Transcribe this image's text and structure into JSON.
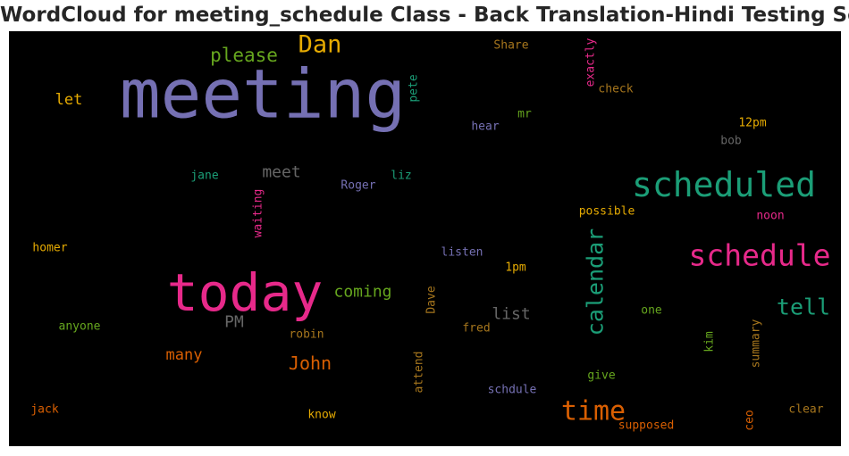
{
  "chart_data": {
    "type": "wordcloud",
    "title": "WordCloud for meeting_schedule Class - Back Translation-Hindi Testing Set",
    "background": "#000000",
    "words": [
      {
        "text": "meeting",
        "weight": 1.0,
        "color": "#7570b3",
        "rotated": false
      },
      {
        "text": "today",
        "weight": 0.78,
        "color": "#e7298a",
        "rotated": false
      },
      {
        "text": "scheduled",
        "weight": 0.5,
        "color": "#1b9e77",
        "rotated": false
      },
      {
        "text": "schedule",
        "weight": 0.46,
        "color": "#e7298a",
        "rotated": false
      },
      {
        "text": "calendar",
        "weight": 0.34,
        "color": "#1b9e77",
        "rotated": true
      },
      {
        "text": "time",
        "weight": 0.38,
        "color": "#d95f02",
        "rotated": false
      },
      {
        "text": "Dan",
        "weight": 0.36,
        "color": "#e6ab02",
        "rotated": false
      },
      {
        "text": "tell",
        "weight": 0.34,
        "color": "#1b9e77",
        "rotated": false
      },
      {
        "text": "please",
        "weight": 0.28,
        "color": "#66a61e",
        "rotated": false
      },
      {
        "text": "John",
        "weight": 0.27,
        "color": "#d95f02",
        "rotated": false
      },
      {
        "text": "coming",
        "weight": 0.24,
        "color": "#66a61e",
        "rotated": false
      },
      {
        "text": "list",
        "weight": 0.24,
        "color": "#666666",
        "rotated": false
      },
      {
        "text": "meet",
        "weight": 0.23,
        "color": "#666666",
        "rotated": false
      },
      {
        "text": "many",
        "weight": 0.22,
        "color": "#d95f02",
        "rotated": false
      },
      {
        "text": "PM",
        "weight": 0.22,
        "color": "#666666",
        "rotated": false
      },
      {
        "text": "let",
        "weight": 0.22,
        "color": "#e6ab02",
        "rotated": false
      },
      {
        "text": "Share",
        "weight": 0.17,
        "color": "#a6761d",
        "rotated": false
      },
      {
        "text": "exactly",
        "weight": 0.17,
        "color": "#e7298a",
        "rotated": true
      },
      {
        "text": "check",
        "weight": 0.17,
        "color": "#a6761d",
        "rotated": false
      },
      {
        "text": "pete",
        "weight": 0.17,
        "color": "#1b9e77",
        "rotated": true
      },
      {
        "text": "mr",
        "weight": 0.16,
        "color": "#66a61e",
        "rotated": false
      },
      {
        "text": "hear",
        "weight": 0.17,
        "color": "#7570b3",
        "rotated": false
      },
      {
        "text": "12pm",
        "weight": 0.17,
        "color": "#e6ab02",
        "rotated": false
      },
      {
        "text": "bob",
        "weight": 0.17,
        "color": "#666666",
        "rotated": false
      },
      {
        "text": "jane",
        "weight": 0.16,
        "color": "#1b9e77",
        "rotated": false
      },
      {
        "text": "waiting",
        "weight": 0.17,
        "color": "#e7298a",
        "rotated": true
      },
      {
        "text": "Roger",
        "weight": 0.17,
        "color": "#7570b3",
        "rotated": false
      },
      {
        "text": "liz",
        "weight": 0.16,
        "color": "#1b9e77",
        "rotated": false
      },
      {
        "text": "possible",
        "weight": 0.17,
        "color": "#e6ab02",
        "rotated": false
      },
      {
        "text": "noon",
        "weight": 0.17,
        "color": "#e7298a",
        "rotated": false
      },
      {
        "text": "homer",
        "weight": 0.17,
        "color": "#e6ab02",
        "rotated": false
      },
      {
        "text": "listen",
        "weight": 0.17,
        "color": "#7570b3",
        "rotated": false
      },
      {
        "text": "1pm",
        "weight": 0.16,
        "color": "#e6ab02",
        "rotated": false
      },
      {
        "text": "Dave",
        "weight": 0.16,
        "color": "#a6761d",
        "rotated": true
      },
      {
        "text": "one",
        "weight": 0.16,
        "color": "#66a61e",
        "rotated": false
      },
      {
        "text": "anyone",
        "weight": 0.17,
        "color": "#66a61e",
        "rotated": false
      },
      {
        "text": "robin",
        "weight": 0.17,
        "color": "#a6761d",
        "rotated": false
      },
      {
        "text": "fred",
        "weight": 0.17,
        "color": "#a6761d",
        "rotated": false
      },
      {
        "text": "kim",
        "weight": 0.16,
        "color": "#66a61e",
        "rotated": true
      },
      {
        "text": "summary",
        "weight": 0.17,
        "color": "#a6761d",
        "rotated": true
      },
      {
        "text": "attend",
        "weight": 0.17,
        "color": "#a6761d",
        "rotated": true
      },
      {
        "text": "give",
        "weight": 0.17,
        "color": "#66a61e",
        "rotated": false
      },
      {
        "text": "schdule",
        "weight": 0.17,
        "color": "#7570b3",
        "rotated": false
      },
      {
        "text": "jack",
        "weight": 0.17,
        "color": "#d95f02",
        "rotated": false
      },
      {
        "text": "know",
        "weight": 0.16,
        "color": "#e6ab02",
        "rotated": false
      },
      {
        "text": "supposed",
        "weight": 0.17,
        "color": "#d95f02",
        "rotated": false
      },
      {
        "text": "ceo",
        "weight": 0.16,
        "color": "#d95f02",
        "rotated": true
      },
      {
        "text": "clear",
        "weight": 0.17,
        "color": "#a6761d",
        "rotated": false
      }
    ]
  }
}
